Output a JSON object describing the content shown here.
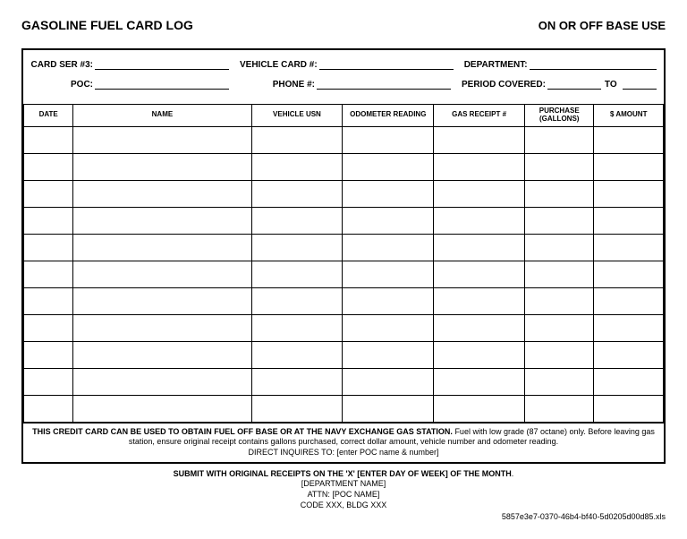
{
  "header": {
    "title_left": "GASOLINE FUEL CARD LOG",
    "title_right": "ON OR OFF BASE USE"
  },
  "fields": {
    "row1": {
      "card_ser_label": "CARD SER #3:",
      "vehicle_card_label": "VEHICLE CARD #:",
      "department_label": "DEPARTMENT:"
    },
    "row2": {
      "poc_label": "POC:",
      "phone_label": "PHONE #:",
      "period_label": "PERIOD COVERED:",
      "to_label": "TO"
    }
  },
  "table": {
    "columns": [
      "DATE",
      "NAME",
      "VEHICLE USN",
      "ODOMETER READING",
      "GAS RECEIPT #",
      "PURCHASE (GALLONS)",
      "$ AMOUNT"
    ],
    "row_count": 11
  },
  "notice": {
    "bold_part": "THIS CREDIT CARD CAN BE USED TO OBTAIN FUEL OFF BASE OR AT THE NAVY EXCHANGE GAS STATION.",
    "rest": "  Fuel with low grade (87 octane) only.  Before leaving gas station, ensure original receipt contains gallons purchased, correct dollar amount, vehicle number and odometer reading.",
    "direct": "DIRECT INQUIRES TO: [enter POC name & number]"
  },
  "submit": {
    "line1_bold": "SUBMIT WITH ORIGINAL RECEIPTS ON THE 'X' [ENTER DAY OF WEEK] OF THE MONTH",
    "line2": "[DEPARTMENT NAME]",
    "line3": "ATTN: [POC NAME]",
    "line4": "CODE XXX, BLDG XXX"
  },
  "filename": "5857e3e7-0370-46b4-bf40-5d0205d00d85.xls"
}
